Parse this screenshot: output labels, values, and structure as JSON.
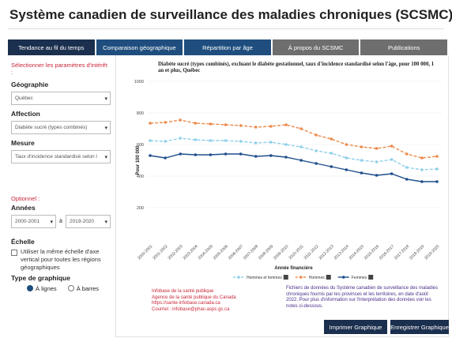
{
  "header": {
    "title": "Système canadien de surveillance des maladies chroniques (SCSMC)"
  },
  "tabs": [
    "Tendance au fil du temps",
    "Comparaison géographique",
    "Répartition par âge",
    "À propos du SCSMC",
    "Publications"
  ],
  "sidebar": {
    "prompt": "Sélectionner les paramètres d'intérêt :",
    "geography": {
      "label": "Géographie",
      "value": "Québec"
    },
    "condition": {
      "label": "Affection",
      "value": "Diabète sucré (types combinés)"
    },
    "measure": {
      "label": "Mesure",
      "value": "Taux d'incidence standardisé selon l'âge"
    },
    "optional": "Optionnel :",
    "years": {
      "label": "Années",
      "from": "2000-2001",
      "separator": "à",
      "to": "2019-2020"
    },
    "scale": {
      "label": "Échelle",
      "checkbox": "Utiliser la même échelle d'axe vertical pour toutes les régions géographiques"
    },
    "chart_type": {
      "label": "Type de graphique",
      "options": [
        "À lignes",
        "À barres"
      ]
    }
  },
  "chart_data": {
    "type": "line",
    "title": "Diabète sucré (types combinés), excluant le diabète gestationnel, taux d'incidence standardisé selon l'âge, pour 100 000, 1 an et plus, Québec",
    "x_label": "Année financière",
    "y_label": "Pour 100 000",
    "categories": [
      "2000-2001",
      "2001-2002",
      "2002-2003",
      "2003-2004",
      "2004-2005",
      "2005-2006",
      "2006-2007",
      "2007-2008",
      "2008-2009",
      "2009-2010",
      "2010-2011",
      "2011-2012",
      "2012-2013",
      "2013-2014",
      "2014-2015",
      "2015-2016",
      "2016-2017",
      "2017-2018",
      "2018-2019",
      "2019-2020"
    ],
    "series": [
      {
        "name": "Hommes et femmes",
        "color": "#8fd0ea",
        "dashed": true,
        "values": [
          625,
          620,
          640,
          630,
          625,
          625,
          620,
          610,
          615,
          600,
          585,
          560,
          545,
          515,
          500,
          490,
          505,
          455,
          440,
          445
        ]
      },
      {
        "name": "Hommes",
        "color": "#ec8a4c",
        "dashed": true,
        "values": [
          735,
          740,
          755,
          735,
          730,
          725,
          720,
          710,
          715,
          725,
          700,
          660,
          635,
          600,
          585,
          575,
          590,
          540,
          515,
          525
        ]
      },
      {
        "name": "Femmes",
        "color": "#1f4e8c",
        "dashed": false,
        "values": [
          530,
          515,
          540,
          535,
          535,
          540,
          540,
          525,
          530,
          520,
          500,
          480,
          460,
          440,
          420,
          405,
          415,
          380,
          365,
          365
        ]
      }
    ],
    "ylim": [
      0,
      1000
    ],
    "yticks": [
      200,
      400,
      600,
      800,
      1000
    ],
    "grid": true
  },
  "footer": {
    "source_lines": [
      "Infobase de la santé publique",
      "Agence de la santé publique du Canada",
      "https://sante-infobase.canada.ca",
      "Courriel : infobase@phac-aspc.gc.ca"
    ],
    "note": "Fichiers de données du Système canadien de surveillance des maladies chroniques fournis par les provinces et les territoires, en date d'août 2022. Pour plus d'information sur l'interprétation des données voir les notes ci-dessous.",
    "buttons": [
      "Imprimer Graphique",
      "Enregistrer Graphique"
    ]
  }
}
